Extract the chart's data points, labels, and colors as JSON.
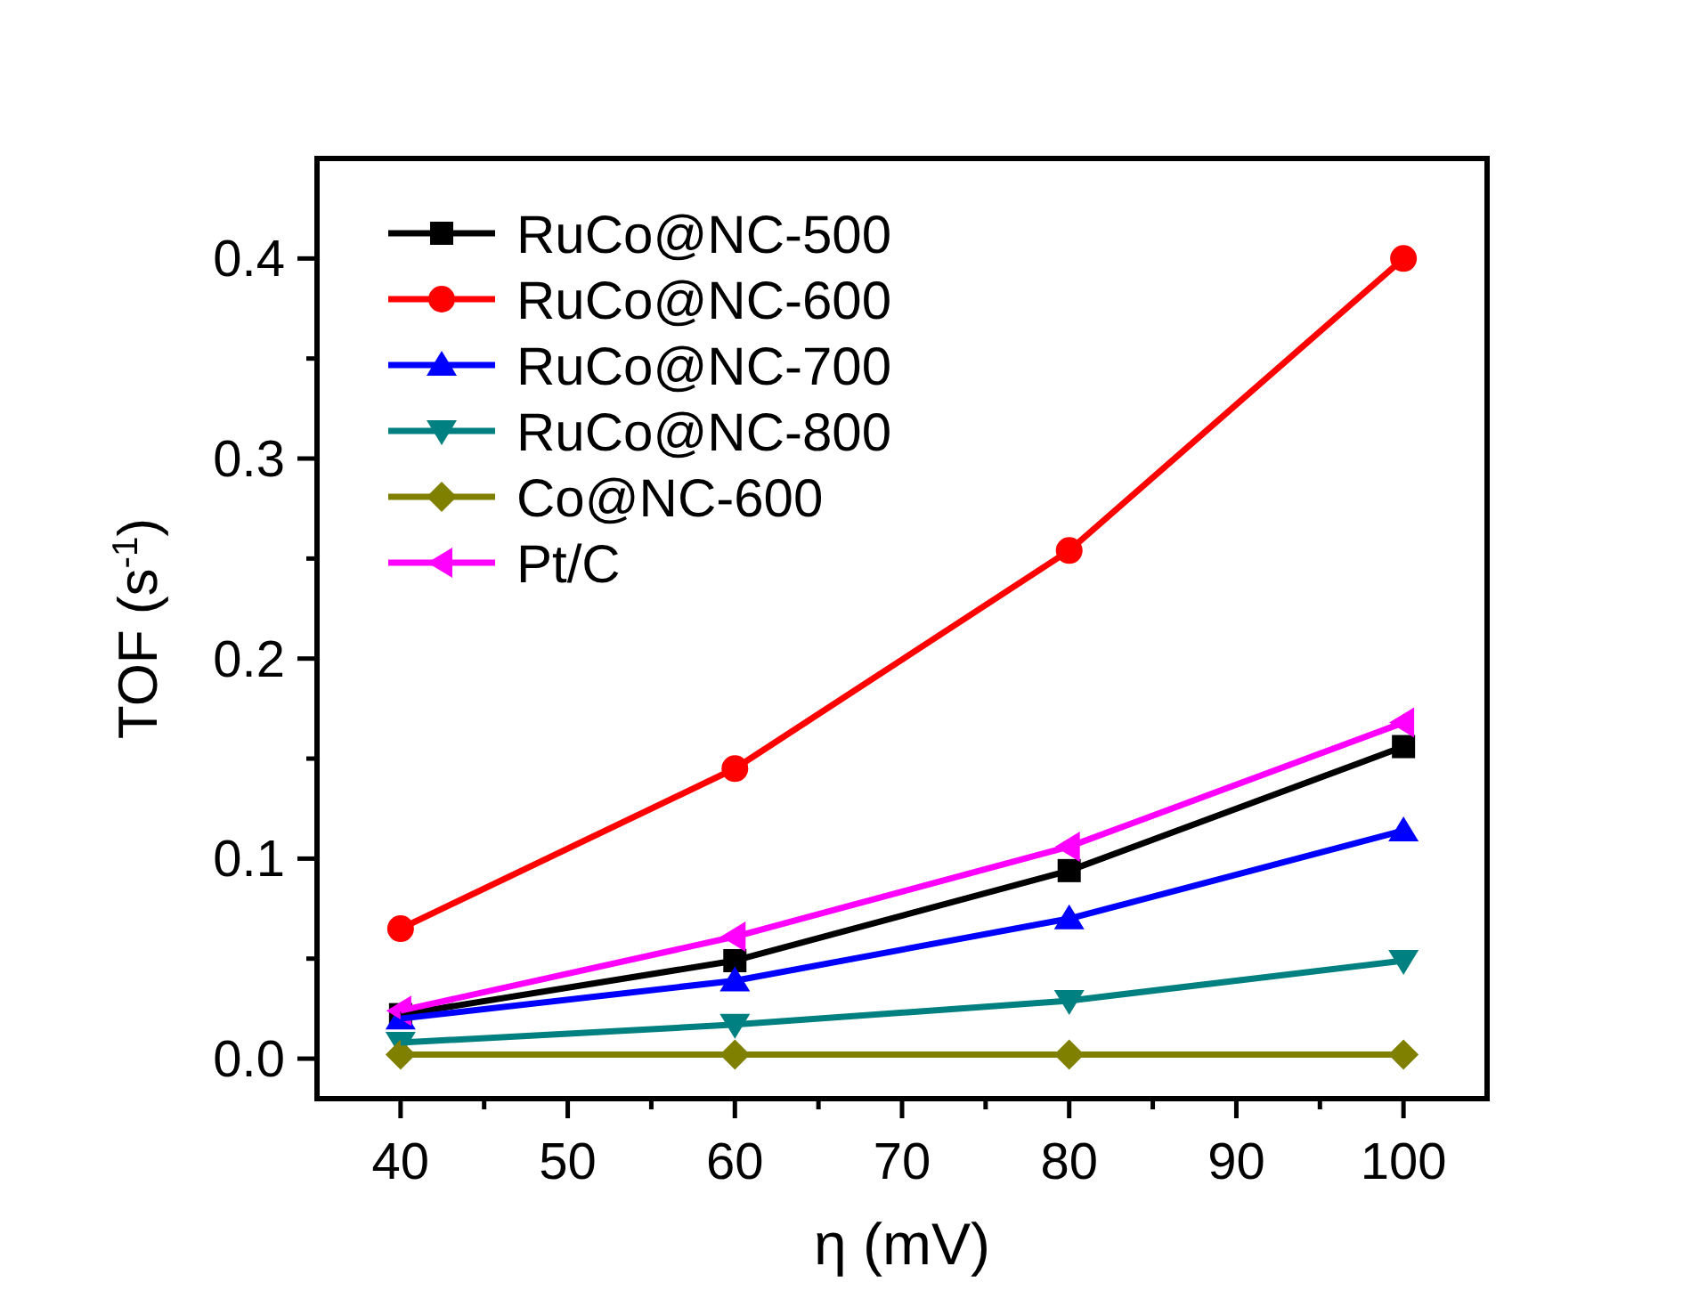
{
  "chart_data": {
    "type": "line",
    "xlabel": "η (mV)",
    "ylabel": "TOF (s$^{-1}$)",
    "x": [
      40,
      60,
      80,
      100
    ],
    "xlim": [
      35,
      105
    ],
    "xticks": [
      40,
      {
        "value": 45,
        "label": null
      },
      50,
      {
        "value": 55,
        "label": null
      },
      60,
      {
        "value": 65,
        "label": null
      },
      70,
      {
        "value": 75,
        "label": null
      },
      80,
      {
        "value": 85,
        "label": null
      },
      90,
      {
        "value": 95,
        "label": null
      },
      100
    ],
    "ylim": [
      -0.02,
      0.45
    ],
    "yticks": [
      {
        "value": 0,
        "label": "0.0"
      },
      {
        "value": 0.05,
        "label": null
      },
      {
        "value": 0.1,
        "label": "0.1"
      },
      {
        "value": 0.15,
        "label": null
      },
      {
        "value": 0.2,
        "label": "0.2"
      },
      {
        "value": 0.25,
        "label": null
      },
      {
        "value": 0.3,
        "label": "0.3"
      },
      {
        "value": 0.35,
        "label": null
      },
      {
        "value": 0.4,
        "label": "0.4"
      }
    ],
    "grid": false,
    "legend": "top left",
    "line_style": "solid",
    "series": [
      {
        "name": "RuCo@NC-500",
        "color": "#000000",
        "marker": "square",
        "values": [
          0.022,
          0.049,
          0.094,
          0.156
        ]
      },
      {
        "name": "RuCo@NC-600",
        "color": "#ff0000",
        "marker": "circle",
        "values": [
          0.065,
          0.145,
          0.254,
          0.4
        ]
      },
      {
        "name": "RuCo@NC-700",
        "color": "#0000ff",
        "marker": "triangle",
        "values": [
          0.02,
          0.039,
          0.07,
          0.114
        ]
      },
      {
        "name": "RuCo@NC-800",
        "color": "#008080",
        "marker": "triangle-down",
        "values": [
          0.008,
          0.017,
          0.029,
          0.049
        ]
      },
      {
        "name": "Co@NC-600",
        "color": "#808000",
        "marker": "diamond",
        "values": [
          0.002,
          0.002,
          0.002,
          0.002
        ]
      },
      {
        "name": "Pt/C",
        "color": "#ff00ff",
        "marker": "triangle-left",
        "values": [
          0.024,
          0.061,
          0.106,
          0.168
        ]
      }
    ]
  }
}
